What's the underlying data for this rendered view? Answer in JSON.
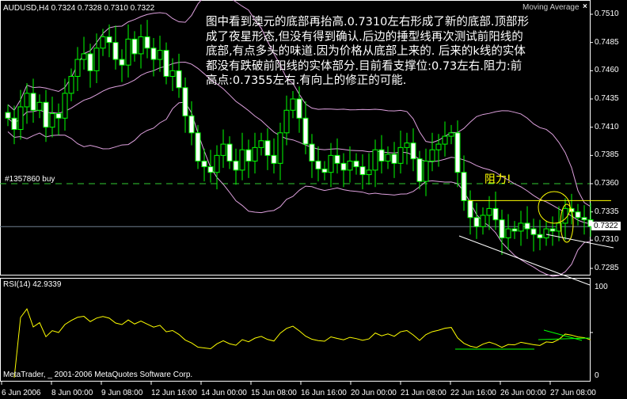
{
  "chart_data": {
    "type": "candlestick",
    "symbol_header": "AUDUSD,H4  0.7324 0.7328 0.7310 0.7322",
    "indicator_label": "Moving Average",
    "close_icon": "close-x-icon",
    "price_ticks": [
      "0.7510",
      "0.7485",
      "0.7460",
      "0.7435",
      "0.7410",
      "0.7385",
      "0.7360",
      "0.7335",
      "0.7310",
      "0.7285"
    ],
    "price_tick_values": [
      0.751,
      0.7485,
      0.746,
      0.7435,
      0.741,
      0.7385,
      0.736,
      0.7335,
      0.731,
      0.7285
    ],
    "current_price": "0.7322",
    "current_price_value": 0.7322,
    "order_line": {
      "label": "#1357860 buy",
      "price": 0.736
    },
    "resistance_label": "阻力!",
    "resistance_price": 0.7345,
    "close": [
      0.7418,
      0.7408,
      0.7428,
      0.744,
      0.7425,
      0.7432,
      0.741,
      0.7422,
      0.7418,
      0.744,
      0.7455,
      0.747,
      0.7475,
      0.746,
      0.748,
      0.749,
      0.7485,
      0.747,
      0.7465,
      0.7488,
      0.7475,
      0.749,
      0.748,
      0.747,
      0.7478,
      0.7455,
      0.746,
      0.7445,
      0.742,
      0.7405,
      0.738,
      0.7375,
      0.737,
      0.7385,
      0.7395,
      0.738,
      0.7372,
      0.739,
      0.738,
      0.7392,
      0.7398,
      0.7385,
      0.7378,
      0.7405,
      0.7425,
      0.7435,
      0.7418,
      0.7395,
      0.738,
      0.7373,
      0.737,
      0.7385,
      0.7378,
      0.7372,
      0.738,
      0.7375,
      0.7368,
      0.7372,
      0.739,
      0.738,
      0.7386,
      0.7378,
      0.7392,
      0.7396,
      0.7382,
      0.7362,
      0.738,
      0.739,
      0.7395,
      0.7402,
      0.7405,
      0.737,
      0.7345,
      0.733,
      0.7322,
      0.7332,
      0.7338,
      0.7328,
      0.7312,
      0.732,
      0.7318,
      0.7325,
      0.732,
      0.7315,
      0.7312,
      0.732,
      0.7318,
      0.7325,
      0.7338,
      0.7335,
      0.733,
      0.7328,
      0.7322
    ],
    "rsi": {
      "label": "RSI(14) 42.9339",
      "ticks": [
        "100",
        "0"
      ],
      "ylim": [
        0,
        100
      ]
    },
    "time_ticks": [
      "6 Jun 2006",
      "8 Jun 00:00",
      "9 Jun 08:00",
      "12 Jun 16:00",
      "14 Jun 00:00",
      "15 Jun 08:00",
      "16 Jun 16:00",
      "20 Jun 00:00",
      "21 Jun 08:00",
      "22 Jun 16:00",
      "26 Jun 00:00",
      "27 Jun 08:00"
    ],
    "colors": {
      "candle": "#00ff00",
      "bands": "#dda0dd",
      "rsi": "#ffff00",
      "order_line": "#32cd32",
      "annotation": "#ffff00"
    }
  },
  "annotation_text": [
    "图中看到澳元的底部再抬高.0.7310左右形成了新的底部.顶部形",
    "成了夜星形态,但没有得到确认.后边的捶型线再次测试前阳线的",
    "底部,有点多头的味道.因为价格从底部上来的. 后来的k线的实体",
    "都没有跌破前阳线的实体部分.目前看支撑位:0.73左右.阻力:前",
    "高点:0.7355左右.有向上的修正的可能."
  ],
  "copyright": "MetaTrader, _ 2001-2006 MetaQuotes Software Corp."
}
